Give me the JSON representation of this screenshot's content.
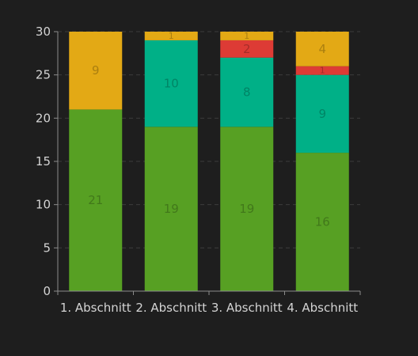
{
  "chart_data": {
    "type": "bar",
    "stacked": true,
    "categories": [
      "1. Abschnitt",
      "2. Abschnitt",
      "3. Abschnitt",
      "4. Abschnitt"
    ],
    "series": [
      {
        "color": "#57a023",
        "values": [
          21,
          19,
          19,
          16
        ]
      },
      {
        "color": "#00b087",
        "values": [
          0,
          10,
          8,
          9
        ]
      },
      {
        "color": "#dd3b35",
        "values": [
          0,
          0,
          2,
          1
        ]
      },
      {
        "color": "#e3a915",
        "values": [
          9,
          1,
          1,
          4
        ]
      }
    ],
    "ylim": [
      0,
      30
    ],
    "yticks": [
      0,
      5,
      10,
      15,
      20,
      25,
      30
    ],
    "grid": true,
    "legend": "none",
    "colors": {
      "background": "#1e1e1e",
      "axis": "#8c8c8c",
      "grid": "#3c3c3c",
      "tick_text": "#d4d4d4"
    }
  }
}
